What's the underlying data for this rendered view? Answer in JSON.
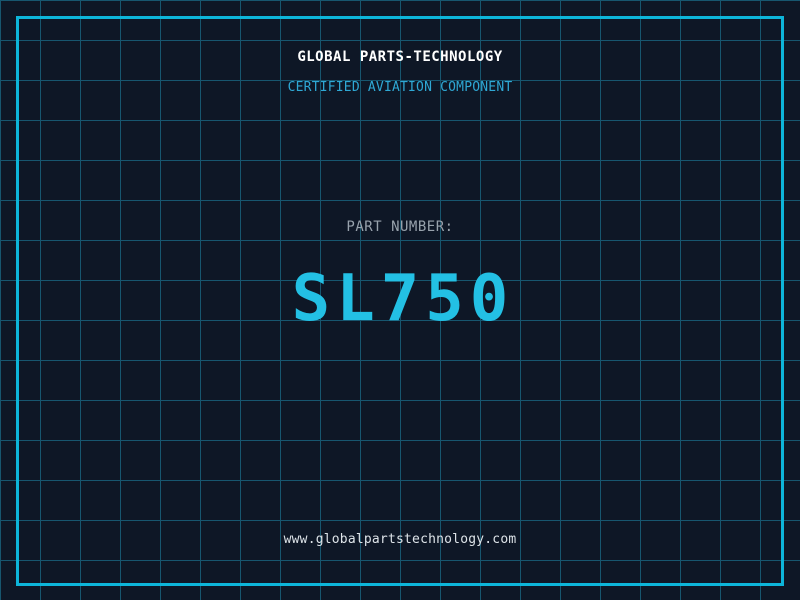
{
  "theme": {
    "background": "#0e1726",
    "grid_line": "#17566f",
    "border": "#0db5da",
    "title_color": "#ffffff",
    "subtitle_color": "#2fa8d4",
    "label_color": "#98a2ac",
    "part_number_color": "#23c0e4",
    "url_color": "#dde3e8"
  },
  "header": {
    "title": "GLOBAL PARTS-TECHNOLOGY",
    "subtitle": "CERTIFIED AVIATION COMPONENT"
  },
  "part": {
    "label": "PART NUMBER:",
    "number": "SL750"
  },
  "footer": {
    "url": "www.globalpartstechnology.com"
  }
}
